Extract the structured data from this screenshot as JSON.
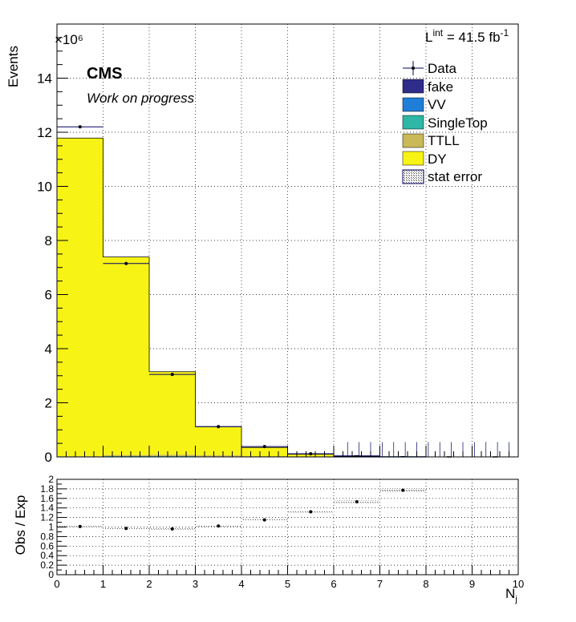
{
  "chart_data": [
    {
      "type": "bar",
      "stacked": true,
      "exponent_label": "×10⁶",
      "lumi": {
        "prefix": "L",
        "sup": "int",
        "text": " = 41.5 fb",
        "unit_sup": "-1"
      },
      "cms_label": "CMS",
      "cms_sublabel": "Work on progress",
      "ylabel": "Events",
      "xlabel": "",
      "xlim": [
        0,
        10
      ],
      "ylim": [
        0,
        16
      ],
      "yticks": [
        "0",
        "2",
        "4",
        "6",
        "8",
        "10",
        "12",
        "14"
      ],
      "grid": true,
      "legend_position": "top-right",
      "bin_edges": [
        0,
        1,
        2,
        3,
        4,
        5,
        6,
        7,
        8,
        9,
        10
      ],
      "series": [
        {
          "name": "fake",
          "color": "#2e2d8a",
          "values": [
            0.0,
            0.02,
            0.02,
            0.01,
            0.005,
            0.002,
            0.001,
            0.0005,
            0.0,
            0.0
          ]
        },
        {
          "name": "VV",
          "color": "#1e7ed8",
          "values": [
            0.002,
            0.003,
            0.003,
            0.002,
            0.001,
            0.0005,
            0.0002,
            0.0001,
            0.0,
            0.0
          ]
        },
        {
          "name": "SingleTop",
          "color": "#2eb7a6",
          "values": [
            0.003,
            0.005,
            0.005,
            0.004,
            0.002,
            0.001,
            0.0005,
            0.0002,
            0.0,
            0.0
          ]
        },
        {
          "name": "TTLL",
          "color": "#c9b958",
          "values": [
            0.02,
            0.04,
            0.05,
            0.04,
            0.02,
            0.01,
            0.004,
            0.001,
            0.0,
            0.0
          ]
        },
        {
          "name": "DY",
          "color": "#f7f315",
          "values": [
            11.76,
            7.32,
            3.07,
            1.06,
            0.32,
            0.086,
            0.019,
            0.002,
            0.0,
            0.0
          ]
        }
      ],
      "data": {
        "name": "Data",
        "x": [
          0.5,
          1.5,
          2.5,
          3.5,
          4.5,
          5.5,
          6.5,
          7.5,
          8.5,
          9.5
        ],
        "values": [
          12.2,
          7.15,
          3.05,
          1.12,
          0.38,
          0.115,
          0.036,
          0.0074,
          0.0,
          0.0
        ]
      },
      "stat_error_label": "stat error"
    },
    {
      "type": "scatter",
      "ylabel": "Obs / Exp",
      "xlabel": "N",
      "xlabel_sub": "j",
      "xlim": [
        0,
        10
      ],
      "ylim": [
        0,
        2
      ],
      "yticks": [
        "0",
        "0.2",
        "0.4",
        "0.6",
        "0.8",
        "1",
        "1.2",
        "1.4",
        "1.6",
        "1.8",
        "2"
      ],
      "xticks": [
        "0",
        "1",
        "2",
        "3",
        "4",
        "5",
        "6",
        "7",
        "8",
        "9",
        "10"
      ],
      "grid": true,
      "x": [
        0.5,
        1.5,
        2.5,
        3.5,
        4.5,
        5.5,
        6.5,
        7.5
      ],
      "values": [
        1.01,
        0.97,
        0.96,
        1.02,
        1.15,
        1.32,
        1.53,
        1.77
      ],
      "stat_error_half_width": [
        0.002,
        0.002,
        0.003,
        0.004,
        0.008,
        0.015,
        0.025,
        0.04
      ]
    }
  ]
}
